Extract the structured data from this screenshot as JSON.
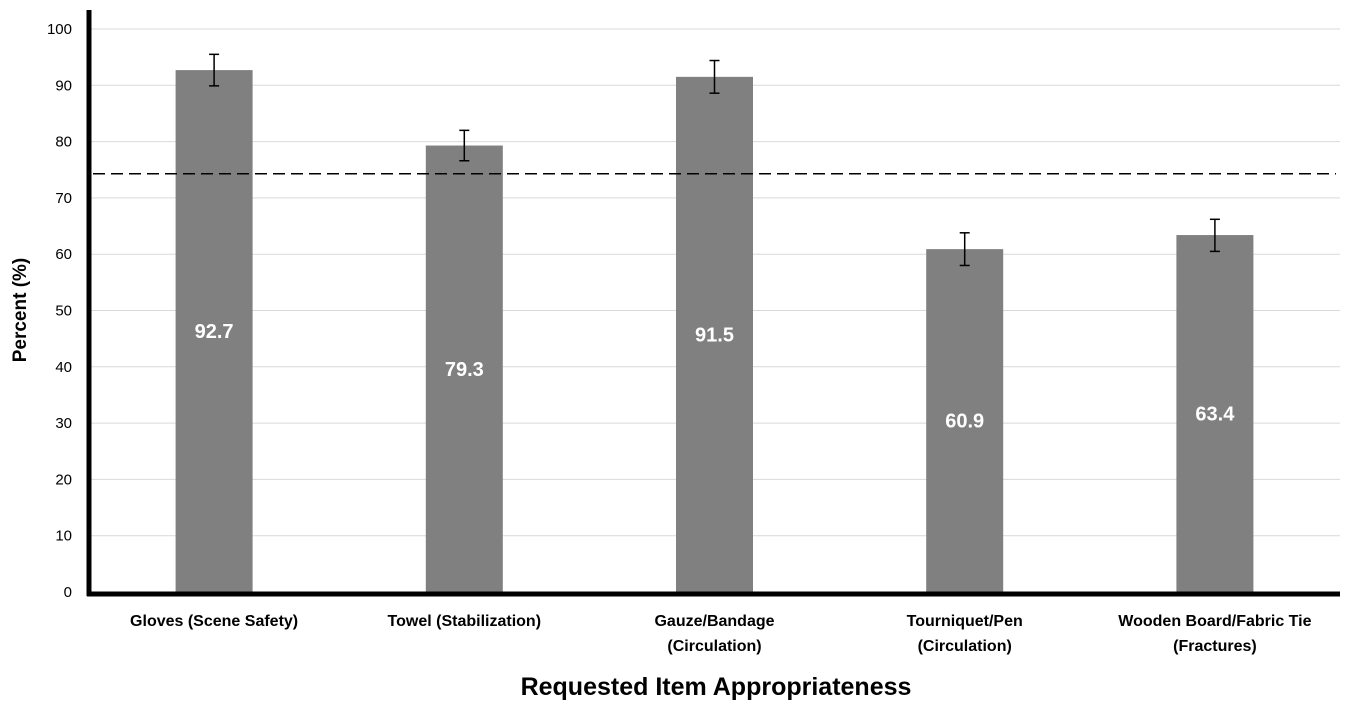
{
  "chart_data": {
    "type": "bar",
    "title": "",
    "xlabel": "Requested Item Appropriateness",
    "ylabel": "Percent (%)",
    "ylim": [
      0,
      100
    ],
    "yticks": [
      0,
      10,
      20,
      30,
      40,
      50,
      60,
      70,
      80,
      90,
      100
    ],
    "categories": [
      [
        "Gloves (Scene Safety)"
      ],
      [
        "Towel (Stabilization)"
      ],
      [
        "Gauze/Bandage",
        "(Circulation)"
      ],
      [
        "Tourniquet/Pen",
        "(Circulation)"
      ],
      [
        "Wooden Board/Fabric Tie",
        "(Fractures)"
      ]
    ],
    "values": [
      92.7,
      79.3,
      91.5,
      60.9,
      63.4
    ],
    "value_labels": [
      "92.7",
      "79.3",
      "91.5",
      "60.9",
      "63.4"
    ],
    "error_bars": [
      [
        89.9,
        95.5
      ],
      [
        76.6,
        82.0
      ],
      [
        88.6,
        94.4
      ],
      [
        58.0,
        63.8
      ],
      [
        60.5,
        66.2
      ]
    ],
    "reference_line": 74.3,
    "grid": true,
    "colors": {
      "bar": "#808080",
      "grid": "#d9d9d9",
      "axis": "#000000",
      "value_label": "#ffffff"
    }
  }
}
